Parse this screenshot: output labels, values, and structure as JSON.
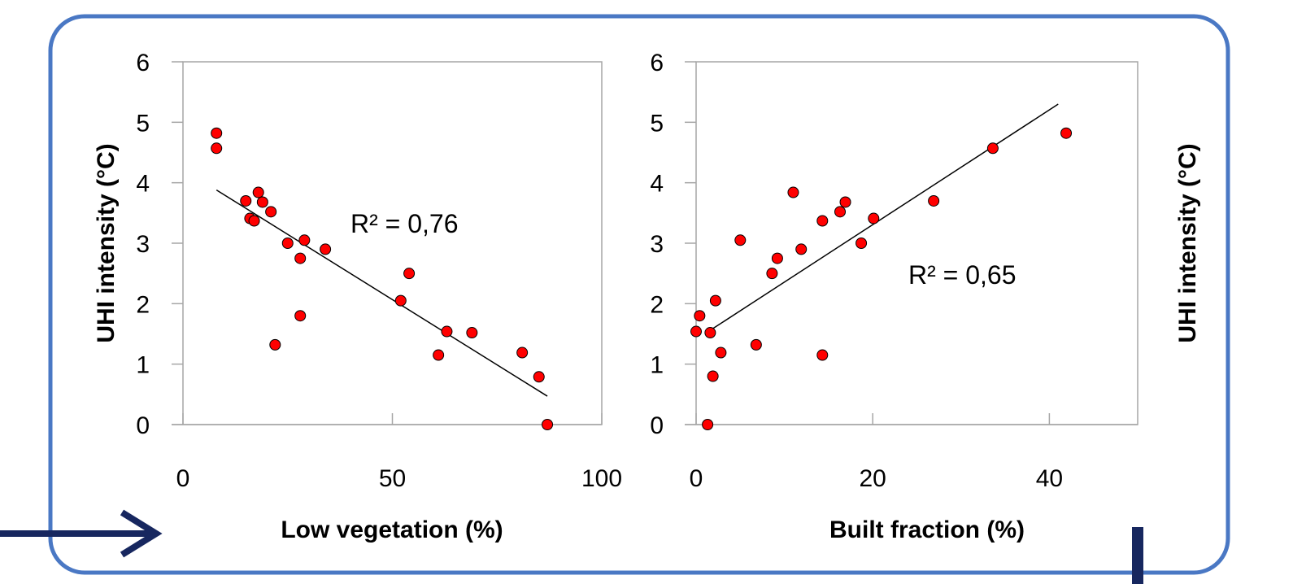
{
  "colors": {
    "frame": "#4a78c4",
    "arrow": "#17275f",
    "marker_fill": "#ff0000",
    "marker_stroke": "#000000",
    "trendline": "#000000"
  },
  "chart_data": [
    {
      "type": "scatter",
      "xlabel": "Low vegetation (%)",
      "ylabel": "UHI intensity (°C)",
      "xlim": [
        0,
        100
      ],
      "ylim": [
        0,
        6
      ],
      "xticks": [
        "0",
        "50",
        "100"
      ],
      "yticks": [
        "0",
        "1",
        "2",
        "3",
        "4",
        "5",
        "6"
      ],
      "grid": false,
      "annotation": "R² = 0,76",
      "trendline": {
        "x": [
          8,
          87
        ],
        "y": [
          3.88,
          0.47
        ]
      },
      "points": [
        {
          "x": 8,
          "y": 4.82
        },
        {
          "x": 8,
          "y": 4.57
        },
        {
          "x": 15,
          "y": 3.7
        },
        {
          "x": 18,
          "y": 3.84
        },
        {
          "x": 19,
          "y": 3.68
        },
        {
          "x": 16,
          "y": 3.41
        },
        {
          "x": 17,
          "y": 3.37
        },
        {
          "x": 21,
          "y": 3.52
        },
        {
          "x": 25,
          "y": 3.0
        },
        {
          "x": 29,
          "y": 3.05
        },
        {
          "x": 34,
          "y": 2.9
        },
        {
          "x": 28,
          "y": 2.75
        },
        {
          "x": 28,
          "y": 1.8
        },
        {
          "x": 22,
          "y": 1.32
        },
        {
          "x": 54,
          "y": 2.5
        },
        {
          "x": 52,
          "y": 2.05
        },
        {
          "x": 63,
          "y": 1.54
        },
        {
          "x": 69,
          "y": 1.52
        },
        {
          "x": 61,
          "y": 1.15
        },
        {
          "x": 81,
          "y": 1.19
        },
        {
          "x": 85,
          "y": 0.79
        },
        {
          "x": 87,
          "y": 0.0
        }
      ]
    },
    {
      "type": "scatter",
      "xlabel": "Built fraction (%)",
      "ylabel": "UHI intensity (°C)",
      "xlim": [
        0,
        50
      ],
      "ylim": [
        0,
        6
      ],
      "xticks": [
        "0",
        "20",
        "40"
      ],
      "yticks": [
        "0",
        "1",
        "2",
        "3",
        "4",
        "5",
        "6"
      ],
      "grid": false,
      "annotation": "R² = 0,65",
      "trendline": {
        "x": [
          1.5,
          41
        ],
        "y": [
          1.55,
          5.3
        ]
      },
      "points": [
        {
          "x": 0,
          "y": 1.54
        },
        {
          "x": 0.4,
          "y": 1.8
        },
        {
          "x": 1.3,
          "y": 0.0
        },
        {
          "x": 1.6,
          "y": 1.52
        },
        {
          "x": 1.9,
          "y": 0.8
        },
        {
          "x": 2.2,
          "y": 2.05
        },
        {
          "x": 2.8,
          "y": 1.19
        },
        {
          "x": 5,
          "y": 3.05
        },
        {
          "x": 6.8,
          "y": 1.32
        },
        {
          "x": 8.6,
          "y": 2.5
        },
        {
          "x": 9.2,
          "y": 2.75
        },
        {
          "x": 11,
          "y": 3.84
        },
        {
          "x": 11.9,
          "y": 2.9
        },
        {
          "x": 14.3,
          "y": 3.37
        },
        {
          "x": 14.3,
          "y": 1.15
        },
        {
          "x": 16.3,
          "y": 3.52
        },
        {
          "x": 16.9,
          "y": 3.68
        },
        {
          "x": 18.7,
          "y": 3.0
        },
        {
          "x": 20.1,
          "y": 3.41
        },
        {
          "x": 26.9,
          "y": 3.7
        },
        {
          "x": 33.6,
          "y": 4.57
        },
        {
          "x": 41.9,
          "y": 4.82
        }
      ]
    }
  ]
}
